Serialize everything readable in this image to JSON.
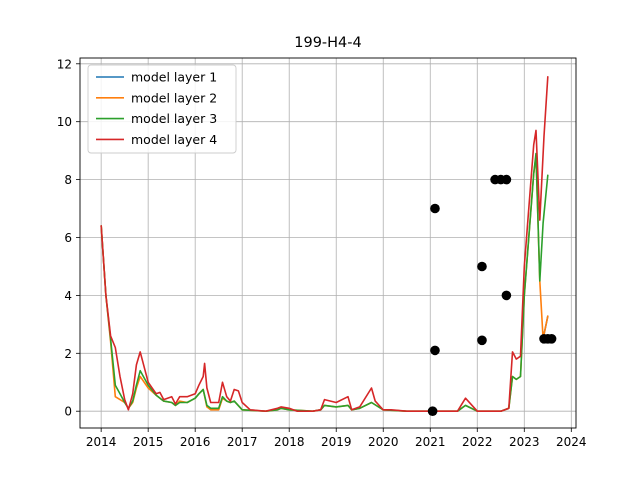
{
  "chart_data": {
    "type": "line",
    "title": "199-H4-4",
    "xlabel": "",
    "ylabel": "",
    "xlim": [
      2013.55,
      2024.1
    ],
    "ylim": [
      -0.58,
      12.2
    ],
    "x_ticks": [
      2014,
      2015,
      2016,
      2017,
      2018,
      2019,
      2020,
      2021,
      2022,
      2023,
      2024
    ],
    "y_ticks": [
      0,
      2,
      4,
      6,
      8,
      10,
      12
    ],
    "grid": true,
    "legend_placement": "upper-left",
    "series": [
      {
        "name": "model layer 1",
        "color": "#1f77b4",
        "points": [
          [
            2023.4,
            2.5
          ],
          [
            2023.5,
            3.28
          ]
        ]
      },
      {
        "name": "model layer 2",
        "color": "#ff7f0e",
        "points": [
          [
            2014.0,
            6.4
          ],
          [
            2014.1,
            4.0
          ],
          [
            2014.2,
            2.4
          ],
          [
            2014.3,
            0.5
          ],
          [
            2014.4,
            0.4
          ],
          [
            2014.5,
            0.3
          ],
          [
            2014.58,
            0.1
          ],
          [
            2014.67,
            0.3
          ],
          [
            2014.75,
            0.8
          ],
          [
            2014.83,
            1.2
          ],
          [
            2015.0,
            0.8
          ],
          [
            2015.17,
            0.55
          ],
          [
            2015.33,
            0.35
          ],
          [
            2015.5,
            0.3
          ],
          [
            2015.58,
            0.2
          ],
          [
            2015.67,
            0.35
          ],
          [
            2015.83,
            0.3
          ],
          [
            2016.0,
            0.45
          ],
          [
            2016.08,
            0.6
          ],
          [
            2016.17,
            0.75
          ],
          [
            2016.25,
            0.15
          ],
          [
            2016.33,
            0.05
          ],
          [
            2016.5,
            0.05
          ],
          [
            2016.58,
            0.45
          ],
          [
            2016.67,
            0.35
          ],
          [
            2016.75,
            0.3
          ],
          [
            2016.83,
            0.35
          ],
          [
            2017.0,
            0.05
          ],
          [
            2017.5,
            0.0
          ],
          [
            2017.75,
            0.05
          ],
          [
            2017.83,
            0.1
          ],
          [
            2018.0,
            0.05
          ],
          [
            2018.5,
            0.0
          ],
          [
            2018.67,
            0.05
          ],
          [
            2018.75,
            0.2
          ],
          [
            2019.0,
            0.15
          ],
          [
            2019.25,
            0.2
          ],
          [
            2019.33,
            0.05
          ],
          [
            2019.5,
            0.1
          ],
          [
            2019.75,
            0.3
          ],
          [
            2020.0,
            0.05
          ],
          [
            2020.5,
            0.0
          ],
          [
            2021.0,
            0.0
          ],
          [
            2021.58,
            0.0
          ],
          [
            2021.75,
            0.2
          ],
          [
            2022.0,
            0.0
          ],
          [
            2022.5,
            0.0
          ],
          [
            2022.67,
            0.1
          ],
          [
            2022.75,
            1.2
          ],
          [
            2022.83,
            1.1
          ],
          [
            2022.92,
            1.2
          ],
          [
            2023.0,
            4.0
          ],
          [
            2023.2,
            8.2
          ],
          [
            2023.25,
            8.8
          ],
          [
            2023.33,
            4.5
          ],
          [
            2023.4,
            2.5
          ],
          [
            2023.5,
            3.28
          ]
        ]
      },
      {
        "name": "model layer 3",
        "color": "#2ca02c",
        "points": [
          [
            2014.0,
            6.4
          ],
          [
            2014.1,
            4.0
          ],
          [
            2014.2,
            2.5
          ],
          [
            2014.3,
            0.9
          ],
          [
            2014.4,
            0.6
          ],
          [
            2014.5,
            0.3
          ],
          [
            2014.58,
            0.1
          ],
          [
            2014.67,
            0.35
          ],
          [
            2014.75,
            0.9
          ],
          [
            2014.83,
            1.4
          ],
          [
            2015.0,
            0.9
          ],
          [
            2015.17,
            0.55
          ],
          [
            2015.33,
            0.35
          ],
          [
            2015.5,
            0.3
          ],
          [
            2015.58,
            0.2
          ],
          [
            2015.67,
            0.3
          ],
          [
            2015.83,
            0.3
          ],
          [
            2016.0,
            0.45
          ],
          [
            2016.08,
            0.6
          ],
          [
            2016.17,
            0.75
          ],
          [
            2016.25,
            0.2
          ],
          [
            2016.33,
            0.1
          ],
          [
            2016.5,
            0.1
          ],
          [
            2016.58,
            0.5
          ],
          [
            2016.67,
            0.35
          ],
          [
            2016.75,
            0.3
          ],
          [
            2016.83,
            0.35
          ],
          [
            2017.0,
            0.05
          ],
          [
            2017.5,
            0.0
          ],
          [
            2017.75,
            0.05
          ],
          [
            2017.83,
            0.1
          ],
          [
            2018.0,
            0.05
          ],
          [
            2018.5,
            0.0
          ],
          [
            2018.67,
            0.05
          ],
          [
            2018.75,
            0.2
          ],
          [
            2019.0,
            0.15
          ],
          [
            2019.25,
            0.2
          ],
          [
            2019.33,
            0.05
          ],
          [
            2019.5,
            0.1
          ],
          [
            2019.75,
            0.3
          ],
          [
            2020.0,
            0.05
          ],
          [
            2020.5,
            0.0
          ],
          [
            2021.0,
            0.0
          ],
          [
            2021.58,
            0.0
          ],
          [
            2021.75,
            0.2
          ],
          [
            2022.0,
            0.0
          ],
          [
            2022.5,
            0.0
          ],
          [
            2022.67,
            0.1
          ],
          [
            2022.75,
            1.2
          ],
          [
            2022.83,
            1.1
          ],
          [
            2022.92,
            1.2
          ],
          [
            2023.0,
            4.0
          ],
          [
            2023.2,
            8.2
          ],
          [
            2023.25,
            8.9
          ],
          [
            2023.33,
            4.5
          ],
          [
            2023.4,
            6.5
          ],
          [
            2023.5,
            8.15
          ]
        ]
      },
      {
        "name": "model layer 4",
        "color": "#d62728",
        "points": [
          [
            2014.0,
            6.4
          ],
          [
            2014.1,
            4.0
          ],
          [
            2014.2,
            2.6
          ],
          [
            2014.3,
            2.2
          ],
          [
            2014.4,
            1.2
          ],
          [
            2014.5,
            0.4
          ],
          [
            2014.58,
            0.05
          ],
          [
            2014.67,
            0.6
          ],
          [
            2014.75,
            1.6
          ],
          [
            2014.83,
            2.05
          ],
          [
            2015.0,
            1.0
          ],
          [
            2015.17,
            0.6
          ],
          [
            2015.25,
            0.65
          ],
          [
            2015.33,
            0.4
          ],
          [
            2015.5,
            0.5
          ],
          [
            2015.58,
            0.25
          ],
          [
            2015.67,
            0.5
          ],
          [
            2015.83,
            0.5
          ],
          [
            2016.0,
            0.6
          ],
          [
            2016.08,
            0.9
          ],
          [
            2016.17,
            1.2
          ],
          [
            2016.2,
            1.65
          ],
          [
            2016.25,
            0.8
          ],
          [
            2016.33,
            0.3
          ],
          [
            2016.5,
            0.3
          ],
          [
            2016.58,
            1.0
          ],
          [
            2016.67,
            0.5
          ],
          [
            2016.75,
            0.35
          ],
          [
            2016.83,
            0.75
          ],
          [
            2016.92,
            0.7
          ],
          [
            2017.0,
            0.3
          ],
          [
            2017.17,
            0.05
          ],
          [
            2017.5,
            0.0
          ],
          [
            2017.75,
            0.1
          ],
          [
            2017.83,
            0.15
          ],
          [
            2018.0,
            0.1
          ],
          [
            2018.17,
            0.0
          ],
          [
            2018.5,
            0.0
          ],
          [
            2018.67,
            0.05
          ],
          [
            2018.75,
            0.4
          ],
          [
            2019.0,
            0.3
          ],
          [
            2019.25,
            0.5
          ],
          [
            2019.33,
            0.05
          ],
          [
            2019.5,
            0.15
          ],
          [
            2019.75,
            0.8
          ],
          [
            2019.83,
            0.35
          ],
          [
            2020.0,
            0.05
          ],
          [
            2020.17,
            0.05
          ],
          [
            2020.5,
            0.0
          ],
          [
            2021.0,
            0.0
          ],
          [
            2021.58,
            0.0
          ],
          [
            2021.75,
            0.45
          ],
          [
            2022.0,
            0.0
          ],
          [
            2022.5,
            0.0
          ],
          [
            2022.67,
            0.1
          ],
          [
            2022.75,
            2.05
          ],
          [
            2022.83,
            1.8
          ],
          [
            2022.92,
            1.9
          ],
          [
            2023.0,
            5.0
          ],
          [
            2023.2,
            9.2
          ],
          [
            2023.25,
            9.7
          ],
          [
            2023.33,
            6.6
          ],
          [
            2023.42,
            9.5
          ],
          [
            2023.5,
            11.55
          ]
        ]
      }
    ],
    "observations": [
      [
        2021.05,
        0.0
      ],
      [
        2021.1,
        7.0
      ],
      [
        2021.1,
        2.1
      ],
      [
        2022.1,
        5.0
      ],
      [
        2022.1,
        2.45
      ],
      [
        2022.38,
        8.0
      ],
      [
        2022.5,
        8.0
      ],
      [
        2022.62,
        8.0
      ],
      [
        2022.62,
        4.0
      ],
      [
        2023.42,
        2.5
      ],
      [
        2023.5,
        2.5
      ],
      [
        2023.58,
        2.5
      ]
    ]
  }
}
